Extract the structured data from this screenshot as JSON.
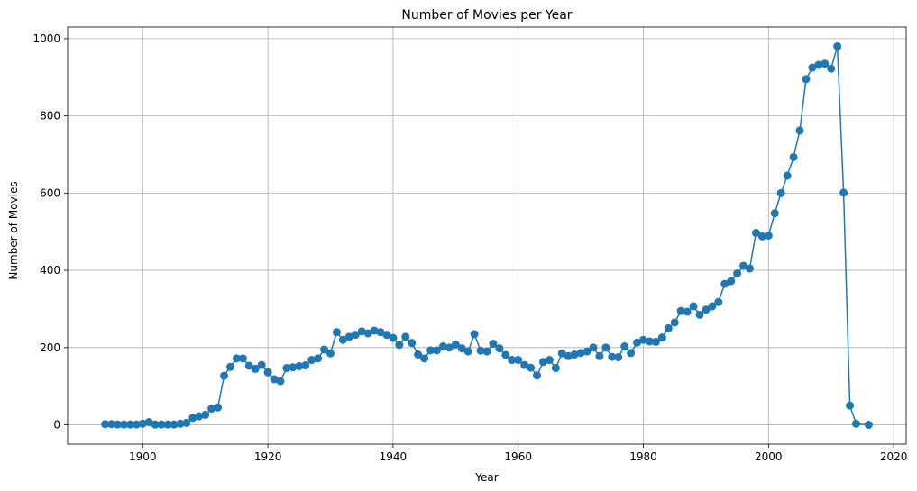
{
  "chart_data": {
    "type": "line",
    "title": "Number of Movies per Year",
    "xlabel": "Year",
    "ylabel": "Number of Movies",
    "xlim": [
      1888,
      2022
    ],
    "ylim": [
      -50,
      1030
    ],
    "xticks": [
      1900,
      1920,
      1940,
      1960,
      1980,
      2000,
      2020
    ],
    "yticks": [
      0,
      200,
      400,
      600,
      800,
      1000
    ],
    "grid": true,
    "color": "#1f77b4",
    "marker": "circle",
    "series": [
      {
        "x": [
          1894,
          1895,
          1896,
          1897,
          1898,
          1899,
          1900,
          1901,
          1902,
          1903,
          1904,
          1905,
          1906,
          1907,
          1908,
          1909,
          1910,
          1911,
          1912,
          1913,
          1914,
          1915,
          1916,
          1917,
          1918,
          1919,
          1920,
          1921,
          1922,
          1923,
          1924,
          1925,
          1926,
          1927,
          1928,
          1929,
          1930,
          1931,
          1932,
          1933,
          1934,
          1935,
          1936,
          1937,
          1938,
          1939,
          1940,
          1941,
          1942,
          1943,
          1944,
          1945,
          1946,
          1947,
          1948,
          1949,
          1950,
          1951,
          1952,
          1953,
          1954,
          1955,
          1956,
          1957,
          1958,
          1959,
          1960,
          1961,
          1962,
          1963,
          1964,
          1965,
          1966,
          1967,
          1968,
          1969,
          1970,
          1971,
          1972,
          1973,
          1974,
          1975,
          1976,
          1977,
          1978,
          1979,
          1980,
          1981,
          1982,
          1983,
          1984,
          1985,
          1986,
          1987,
          1988,
          1989,
          1990,
          1991,
          1992,
          1993,
          1994,
          1995,
          1996,
          1997,
          1998,
          1999,
          2000,
          2001,
          2002,
          2003,
          2004,
          2005,
          2006,
          2007,
          2008,
          2009,
          2010,
          2011,
          2012,
          2013,
          2014,
          2016
        ],
        "y": [
          2,
          2,
          1,
          1,
          1,
          1,
          3,
          7,
          1,
          1,
          1,
          1,
          3,
          5,
          18,
          22,
          26,
          42,
          45,
          127,
          150,
          172,
          172,
          153,
          145,
          155,
          136,
          118,
          113,
          147,
          149,
          152,
          154,
          168,
          172,
          195,
          185,
          240,
          220,
          228,
          233,
          242,
          237,
          244,
          240,
          233,
          225,
          207,
          228,
          212,
          182,
          172,
          193,
          193,
          203,
          200,
          208,
          198,
          190,
          235,
          192,
          190,
          210,
          198,
          181,
          168,
          168,
          155,
          148,
          128,
          163,
          168,
          147,
          185,
          178,
          182,
          186,
          190,
          200,
          178,
          200,
          176,
          175,
          203,
          186,
          213,
          220,
          216,
          215,
          226,
          250,
          265,
          295,
          293,
          307,
          285,
          298,
          307,
          318,
          365,
          372,
          392,
          412,
          405,
          497,
          488,
          490,
          548,
          600,
          645,
          693,
          762,
          895,
          925,
          932,
          935,
          922,
          980,
          601,
          50,
          3,
          0
        ]
      }
    ]
  }
}
